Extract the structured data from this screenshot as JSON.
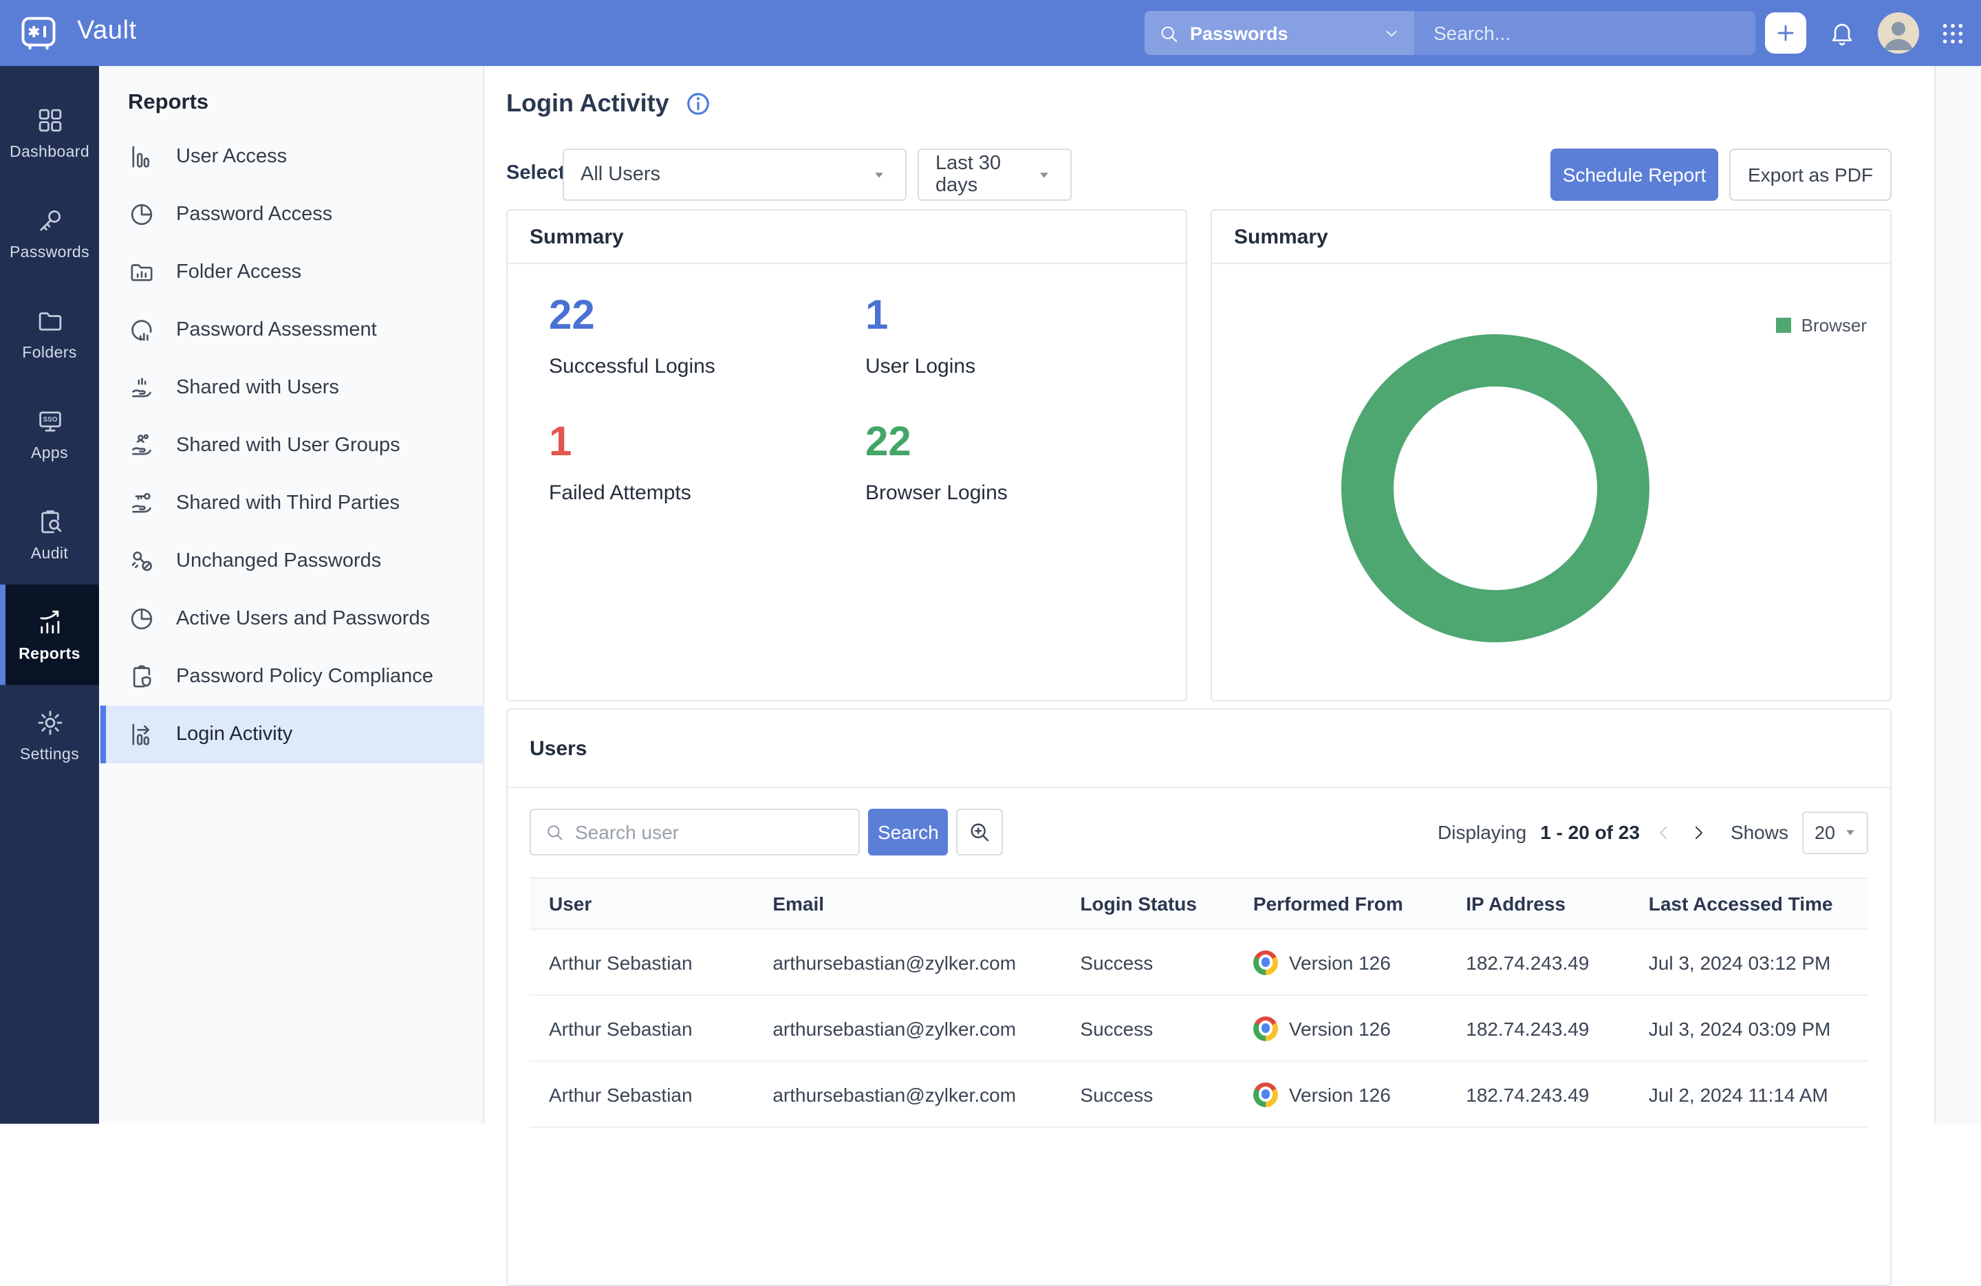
{
  "topbar": {
    "app_name": "Vault",
    "search_scope": "Passwords",
    "search_placeholder": "Search..."
  },
  "sidebar": {
    "items": [
      {
        "label": "Dashboard",
        "icon": "dashboard",
        "active": false
      },
      {
        "label": "Passwords",
        "icon": "passwords",
        "active": false
      },
      {
        "label": "Folders",
        "icon": "folders",
        "active": false
      },
      {
        "label": "Apps",
        "icon": "apps",
        "active": false
      },
      {
        "label": "Audit",
        "icon": "audit",
        "active": false
      },
      {
        "label": "Reports",
        "icon": "reports",
        "active": true
      },
      {
        "label": "Settings",
        "icon": "settings",
        "active": false
      }
    ]
  },
  "reports_panel": {
    "title": "Reports",
    "items": [
      {
        "label": "User Access",
        "icon": "user-access",
        "active": false
      },
      {
        "label": "Password Access",
        "icon": "password-access",
        "active": false
      },
      {
        "label": "Folder Access",
        "icon": "folder-access",
        "active": false
      },
      {
        "label": "Password Assessment",
        "icon": "password-assessment",
        "active": false
      },
      {
        "label": "Shared with Users",
        "icon": "shared-with-users",
        "active": false
      },
      {
        "label": "Shared with User Groups",
        "icon": "shared-with-user-groups",
        "active": false
      },
      {
        "label": "Shared with Third Parties",
        "icon": "shared-with-third-parties",
        "active": false
      },
      {
        "label": "Unchanged Passwords",
        "icon": "unchanged-passwords",
        "active": false
      },
      {
        "label": "Active Users and Passwords",
        "icon": "active-users-passwords",
        "active": false
      },
      {
        "label": "Password Policy Compliance",
        "icon": "password-policy-compliance",
        "active": false
      },
      {
        "label": "Login Activity",
        "icon": "login-activity",
        "active": true
      }
    ]
  },
  "main": {
    "title": "Login Activity",
    "select_label": "Select",
    "user_filter": "All Users",
    "range_filter": "Last 30 days",
    "schedule_button": "Schedule Report",
    "export_button": "Export as PDF"
  },
  "summary_left": {
    "title": "Summary",
    "stats": [
      {
        "value": "22",
        "label": "Successful Logins",
        "color": "#4a72d4"
      },
      {
        "value": "1",
        "label": "User Logins",
        "color": "#4a72d4"
      },
      {
        "value": "1",
        "label": "Failed Attempts",
        "color": "#e2574e"
      },
      {
        "value": "22",
        "label": "Browser Logins",
        "color": "#43a567"
      }
    ]
  },
  "summary_right": {
    "title": "Summary",
    "legend": "Browser"
  },
  "chart_data": {
    "type": "pie",
    "subtype": "donut",
    "title": "Summary",
    "categories": [
      "Browser"
    ],
    "values": [
      22
    ],
    "colors": [
      "#4ea671"
    ],
    "legend_position": "top-right",
    "note": "single full-ring slice; Browser = 100% of 22 browser logins"
  },
  "users": {
    "title": "Users",
    "search_placeholder": "Search user",
    "search_button": "Search",
    "displaying_prefix": "Displaying",
    "displaying_range": "1 - 20 of 23",
    "shows_label": "Shows",
    "page_size": "20",
    "columns": [
      "User",
      "Email",
      "Login Status",
      "Performed From",
      "IP Address",
      "Last Accessed Time"
    ],
    "rows": [
      {
        "user": "Arthur Sebastian",
        "email": "arthursebastian@zylker.com",
        "status": "Success",
        "browser_icon": "chrome",
        "browser": "Version 126",
        "ip": "182.74.243.49",
        "time": "Jul 3, 2024 03:12 PM"
      },
      {
        "user": "Arthur Sebastian",
        "email": "arthursebastian@zylker.com",
        "status": "Success",
        "browser_icon": "chrome",
        "browser": "Version 126",
        "ip": "182.74.243.49",
        "time": "Jul 3, 2024 03:09 PM"
      },
      {
        "user": "Arthur Sebastian",
        "email": "arthursebastian@zylker.com",
        "status": "Success",
        "browser_icon": "chrome",
        "browser": "Version 126",
        "ip": "182.74.243.49",
        "time": "Jul 2, 2024 11:14 AM"
      }
    ]
  },
  "right_rail": {
    "top": [
      {
        "icon": "help",
        "color": "#3d9e5e"
      },
      {
        "icon": "headphones",
        "color": "#d7a427"
      },
      {
        "icon": "megaphone",
        "color": "#6064dd"
      }
    ],
    "bottom": [
      {
        "icon": "keyboard",
        "color": "#585ee2"
      },
      {
        "icon": "moon",
        "color": "#35a25d"
      },
      {
        "icon": "feedback",
        "color": "#d7a427"
      },
      {
        "icon": "person-pin",
        "color": "#e5534c"
      },
      {
        "icon": "send",
        "color": "#6064dd"
      }
    ]
  },
  "colors": {
    "topbar_blue": "#5a7dd6",
    "accent_blue": "#5b7fd7",
    "sidebar_navy": "#202f52",
    "active_item_bg": "#dfe9fc",
    "chart_green": "#4ea671",
    "stat_blue": "#4a72d4",
    "stat_red": "#e2574e",
    "stat_green": "#43a567"
  }
}
